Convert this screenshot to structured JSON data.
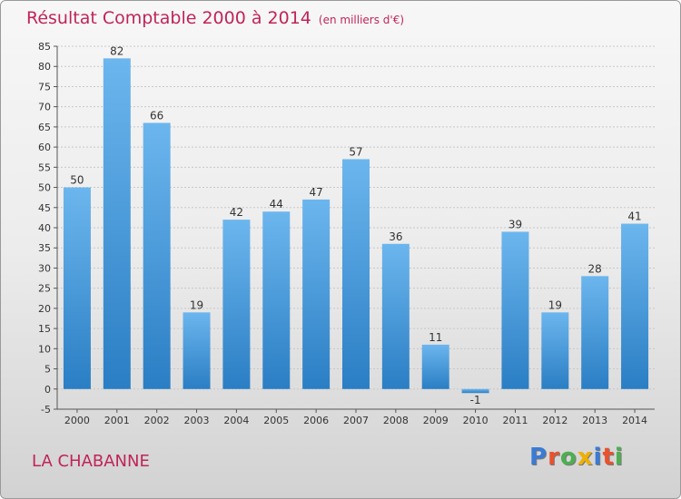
{
  "title": {
    "main": "Résultat Comptable 2000 à 2014",
    "unit": "(en milliers d'€)"
  },
  "commune": "LA CHABANNE",
  "logo": {
    "letters": [
      "P",
      "r",
      "o",
      "x",
      "i",
      "t",
      "i"
    ],
    "colors": [
      "#3a7bd5",
      "#e9522c",
      "#4caf50",
      "#f0b000",
      "#3a7bd5",
      "#e9522c",
      "#4caf50"
    ],
    "text": "Proxiti"
  },
  "colors": {
    "bar_light": "#6cb6ee",
    "bar_dark": "#2a7ec4",
    "accent": "#c0245a"
  },
  "chart_data": {
    "type": "bar",
    "title": "Résultat Comptable 2000 à 2014 (en milliers d'€)",
    "categories": [
      "2000",
      "2001",
      "2002",
      "2003",
      "2004",
      "2005",
      "2006",
      "2007",
      "2008",
      "2009",
      "2010",
      "2011",
      "2012",
      "2013",
      "2014"
    ],
    "values": [
      50,
      82,
      66,
      19,
      42,
      44,
      47,
      57,
      36,
      11,
      -1,
      39,
      19,
      28,
      41
    ],
    "value_labels": [
      "50",
      "82",
      "66",
      "19",
      "42",
      "44",
      "47",
      "57",
      "36",
      "11",
      "-1",
      "39",
      "19",
      "28",
      "41"
    ],
    "yticks": [
      -5,
      0,
      5,
      10,
      15,
      20,
      25,
      30,
      35,
      40,
      45,
      50,
      55,
      60,
      65,
      70,
      75,
      80,
      85
    ],
    "ytick_labels": [
      "-5",
      "0",
      "5",
      "10",
      "15",
      "20",
      "25",
      "30",
      "35",
      "40",
      "45",
      "50",
      "55",
      "60",
      "65",
      "70",
      "75",
      "80",
      "85"
    ],
    "ylim": [
      -5,
      85
    ],
    "xlabel": "",
    "ylabel": "",
    "grid": true
  }
}
